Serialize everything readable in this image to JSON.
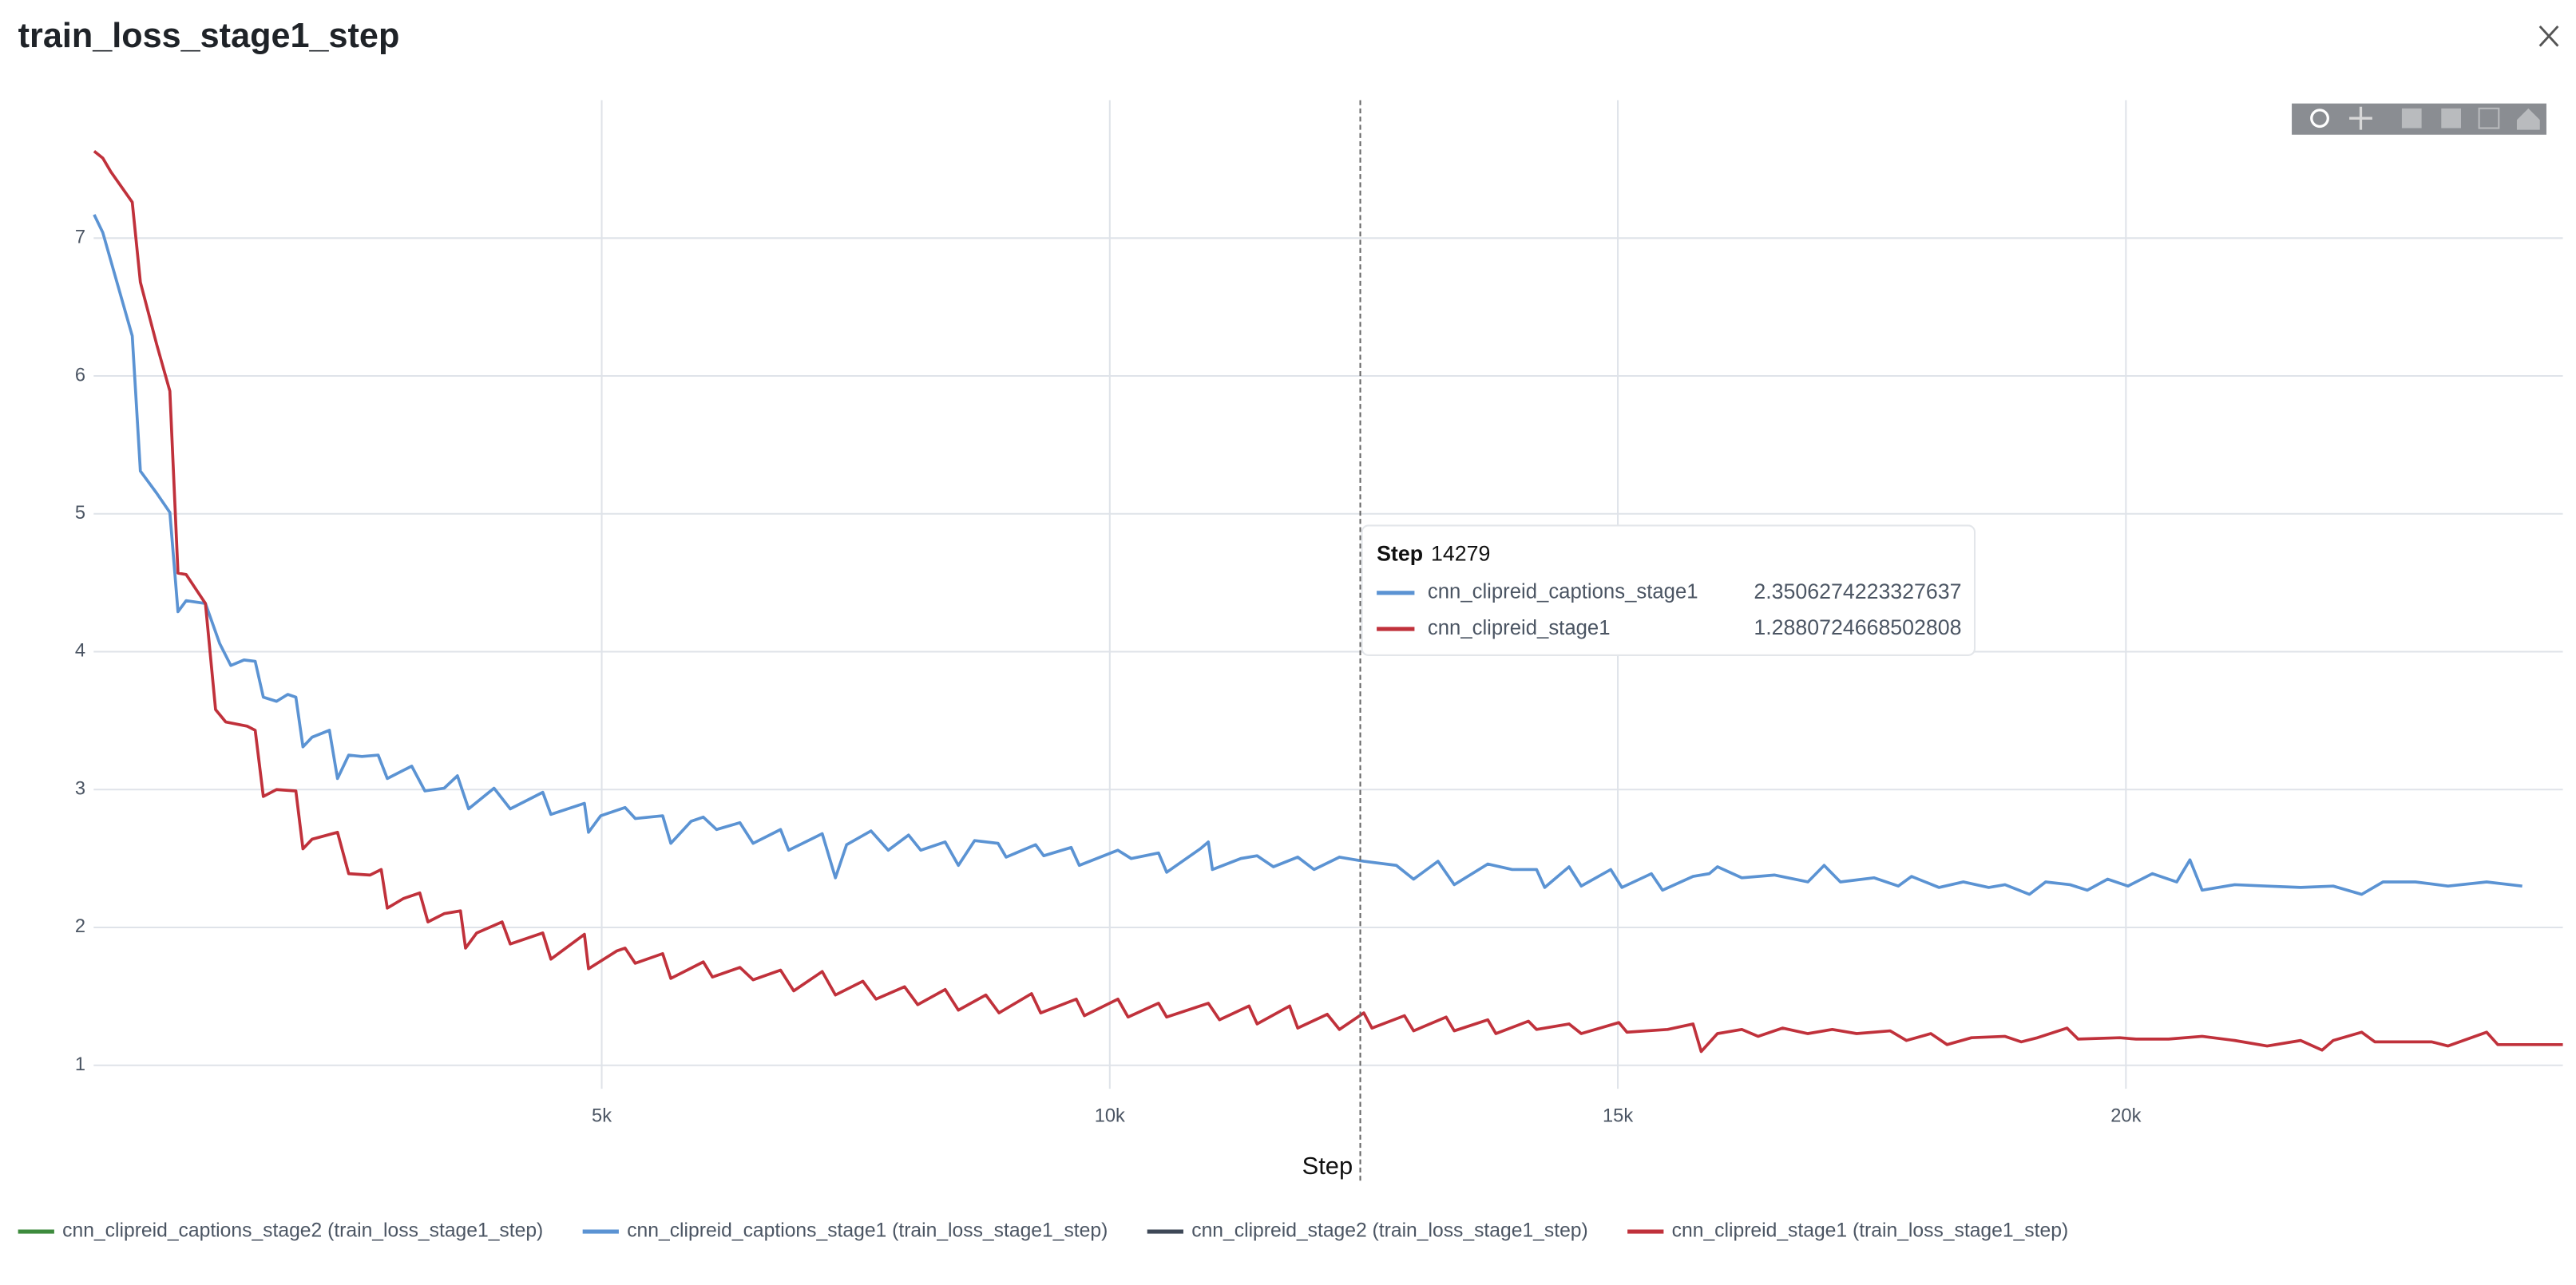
{
  "chart_data": {
    "type": "line",
    "title": "train_loss_stage1_step",
    "x_label": "Step",
    "xlim": [
      0,
      24300
    ],
    "ylim": [
      0.83,
      8.0
    ],
    "xticks": [
      {
        "value": 5000,
        "label": "5k"
      },
      {
        "value": 10000,
        "label": "10k"
      },
      {
        "value": 15000,
        "label": "15k"
      },
      {
        "value": 20000,
        "label": "20k"
      }
    ],
    "yticks": [
      1,
      2,
      3,
      4,
      5,
      6,
      7
    ],
    "grid": true,
    "series": [
      {
        "name": "cnn_clipreid_captions_stage2 (train_loss_stage1_step)",
        "color": "#3d8b3d",
        "x": [],
        "values": []
      },
      {
        "name": "cnn_clipreid_captions_stage1 (train_loss_stage1_step)",
        "color": "#5b93d3",
        "x": [
          5,
          90,
          380,
          460,
          620,
          750,
          830,
          910,
          1100,
          1240,
          1350,
          1480,
          1590,
          1670,
          1800,
          1910,
          1990,
          2060,
          2150,
          2320,
          2400,
          2510,
          2640,
          2800,
          2890,
          3130,
          3260,
          3450,
          3580,
          3690,
          3940,
          4100,
          4420,
          4500,
          4830,
          4870,
          4990,
          5230,
          5330,
          5600,
          5680,
          5880,
          6000,
          6130,
          6360,
          6490,
          6760,
          6840,
          7170,
          7300,
          7410,
          7650,
          7820,
          8020,
          8140,
          8380,
          8510,
          8670,
          8900,
          8980,
          9270,
          9350,
          9620,
          9700,
          10080,
          10210,
          10480,
          10560,
          10890,
          10970,
          11010,
          11290,
          11450,
          11610,
          11850,
          12010,
          12260,
          12500,
          12820,
          12990,
          13230,
          13390,
          13720,
          13960,
          14200,
          14280,
          14520,
          14640,
          14930,
          15040,
          15330,
          15440,
          15740,
          15900,
          15980,
          16220,
          16540,
          16870,
          17030,
          17190,
          17520,
          17760,
          17890,
          18160,
          18400,
          18650,
          18810,
          19050,
          19210,
          19450,
          19620,
          19820,
          20020,
          20260,
          20500,
          20630,
          20750,
          21070,
          21390,
          21720,
          22040,
          22320,
          22530,
          22850,
          23170,
          23550,
          23900
        ],
        "values": [
          7.17,
          7.04,
          6.29,
          5.31,
          5.15,
          5.01,
          4.29,
          4.37,
          4.35,
          4.06,
          3.9,
          3.94,
          3.93,
          3.67,
          3.64,
          3.69,
          3.67,
          3.31,
          3.38,
          3.43,
          3.08,
          3.25,
          3.24,
          3.25,
          3.08,
          3.17,
          2.99,
          3.01,
          3.1,
          2.86,
          3.01,
          2.86,
          2.98,
          2.82,
          2.9,
          2.69,
          2.81,
          2.87,
          2.79,
          2.81,
          2.61,
          2.77,
          2.8,
          2.71,
          2.76,
          2.61,
          2.71,
          2.56,
          2.68,
          2.36,
          2.6,
          2.7,
          2.56,
          2.67,
          2.56,
          2.62,
          2.45,
          2.63,
          2.61,
          2.51,
          2.6,
          2.52,
          2.58,
          2.45,
          2.56,
          2.5,
          2.54,
          2.4,
          2.57,
          2.62,
          2.42,
          2.5,
          2.52,
          2.44,
          2.51,
          2.42,
          2.51,
          2.48,
          2.45,
          2.35,
          2.48,
          2.31,
          2.46,
          2.42,
          2.42,
          2.29,
          2.44,
          2.3,
          2.42,
          2.29,
          2.39,
          2.27,
          2.37,
          2.39,
          2.44,
          2.36,
          2.38,
          2.33,
          2.45,
          2.33,
          2.36,
          2.3,
          2.37,
          2.29,
          2.33,
          2.29,
          2.31,
          2.24,
          2.33,
          2.31,
          2.27,
          2.35,
          2.3,
          2.39,
          2.33,
          2.49,
          2.27,
          2.31,
          2.3,
          2.29,
          2.3,
          2.24,
          2.33,
          2.33,
          2.3,
          2.33,
          2.3
        ]
      },
      {
        "name": "cnn_clipreid_stage2 (train_loss_stage1_step)",
        "color": "#3e4857",
        "x": [],
        "values": []
      },
      {
        "name": "cnn_clipreid_stage1 (train_loss_stage1_step)",
        "color": "#c0313b",
        "x": [
          5,
          90,
          170,
          380,
          460,
          620,
          750,
          830,
          910,
          1100,
          1200,
          1300,
          1510,
          1590,
          1670,
          1800,
          1990,
          2060,
          2150,
          2400,
          2510,
          2720,
          2830,
          2890,
          3050,
          3210,
          3290,
          3450,
          3610,
          3660,
          3770,
          4020,
          4100,
          4420,
          4500,
          4830,
          4870,
          5150,
          5230,
          5330,
          5600,
          5680,
          6000,
          6090,
          6360,
          6490,
          6760,
          6890,
          7170,
          7300,
          7570,
          7700,
          7980,
          8110,
          8380,
          8510,
          8780,
          8910,
          9230,
          9320,
          9670,
          9750,
          10080,
          10180,
          10480,
          10560,
          10970,
          11080,
          11370,
          11450,
          11770,
          11850,
          12140,
          12260,
          12500,
          12580,
          12900,
          12990,
          13310,
          13390,
          13720,
          13800,
          14120,
          14200,
          14520,
          14640,
          15010,
          15090,
          15490,
          15740,
          15820,
          15980,
          16220,
          16380,
          16620,
          16870,
          17110,
          17350,
          17680,
          17840,
          18080,
          18240,
          18480,
          18810,
          18970,
          19130,
          19420,
          19530,
          19940,
          20100,
          20420,
          20750,
          21070,
          21390,
          21720,
          21930,
          22040,
          22320,
          22450,
          23010,
          23170,
          23550,
          23660,
          24300
        ],
        "values": [
          7.63,
          7.58,
          7.48,
          7.26,
          6.68,
          6.23,
          5.89,
          4.57,
          4.56,
          4.35,
          3.58,
          3.49,
          3.46,
          3.43,
          2.95,
          3.0,
          2.99,
          2.57,
          2.64,
          2.69,
          2.39,
          2.38,
          2.42,
          2.14,
          2.21,
          2.25,
          2.04,
          2.1,
          2.12,
          1.85,
          1.96,
          2.04,
          1.88,
          1.96,
          1.77,
          1.95,
          1.7,
          1.83,
          1.85,
          1.74,
          1.81,
          1.63,
          1.75,
          1.64,
          1.71,
          1.62,
          1.69,
          1.54,
          1.68,
          1.51,
          1.61,
          1.48,
          1.57,
          1.44,
          1.55,
          1.4,
          1.51,
          1.38,
          1.52,
          1.38,
          1.48,
          1.36,
          1.48,
          1.35,
          1.45,
          1.35,
          1.45,
          1.33,
          1.43,
          1.3,
          1.43,
          1.27,
          1.37,
          1.26,
          1.38,
          1.27,
          1.36,
          1.25,
          1.35,
          1.25,
          1.33,
          1.23,
          1.32,
          1.26,
          1.3,
          1.23,
          1.31,
          1.24,
          1.26,
          1.3,
          1.1,
          1.23,
          1.26,
          1.21,
          1.27,
          1.23,
          1.26,
          1.23,
          1.25,
          1.18,
          1.23,
          1.15,
          1.2,
          1.21,
          1.17,
          1.2,
          1.27,
          1.19,
          1.2,
          1.19,
          1.19,
          1.21,
          1.18,
          1.14,
          1.18,
          1.11,
          1.18,
          1.24,
          1.17,
          1.17,
          1.14,
          1.24,
          1.15,
          1.15
        ]
      }
    ],
    "tooltip": {
      "label": "Step",
      "step": 14279,
      "rows": [
        {
          "series": 1,
          "name": "cnn_clipreid_captions_stage1",
          "value": 2.3506274223327637
        },
        {
          "series": 3,
          "name": "cnn_clipreid_stage1",
          "value": 1.2880724668502808
        }
      ]
    }
  }
}
